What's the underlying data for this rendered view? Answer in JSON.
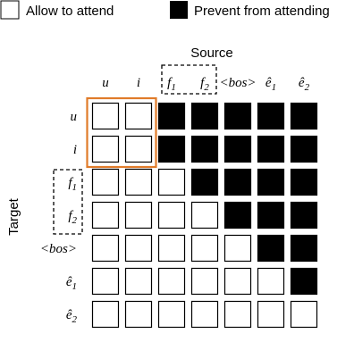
{
  "legend": {
    "allow_label": "Allow to attend",
    "prevent_label": "Prevent from attending"
  },
  "axis": {
    "source_label": "Source",
    "target_label": "Target"
  },
  "source_tokens": [
    {
      "base": "u",
      "sub": ""
    },
    {
      "base": "i",
      "sub": ""
    },
    {
      "base": "f",
      "sub": "1"
    },
    {
      "base": "f",
      "sub": "2"
    },
    {
      "base": "<bos>",
      "sub": ""
    },
    {
      "base": "ê",
      "sub": "1"
    },
    {
      "base": "ê",
      "sub": "2"
    }
  ],
  "target_tokens": [
    {
      "base": "u",
      "sub": ""
    },
    {
      "base": "i",
      "sub": ""
    },
    {
      "base": "f",
      "sub": "1"
    },
    {
      "base": "f",
      "sub": "2"
    },
    {
      "base": "<bos>",
      "sub": ""
    },
    {
      "base": "ê",
      "sub": "1"
    },
    {
      "base": "ê",
      "sub": "2"
    }
  ],
  "mask": [
    [
      0,
      0,
      1,
      1,
      1,
      1,
      1
    ],
    [
      0,
      0,
      1,
      1,
      1,
      1,
      1
    ],
    [
      0,
      0,
      0,
      1,
      1,
      1,
      1
    ],
    [
      0,
      0,
      0,
      0,
      1,
      1,
      1
    ],
    [
      0,
      0,
      0,
      0,
      0,
      1,
      1
    ],
    [
      0,
      0,
      0,
      0,
      0,
      0,
      1
    ],
    [
      0,
      0,
      0,
      0,
      0,
      0,
      0
    ]
  ],
  "colors": {
    "prevent": "#000000",
    "allow": "#ffffff",
    "highlight": "#e07b2a",
    "stroke": "#000000"
  }
}
